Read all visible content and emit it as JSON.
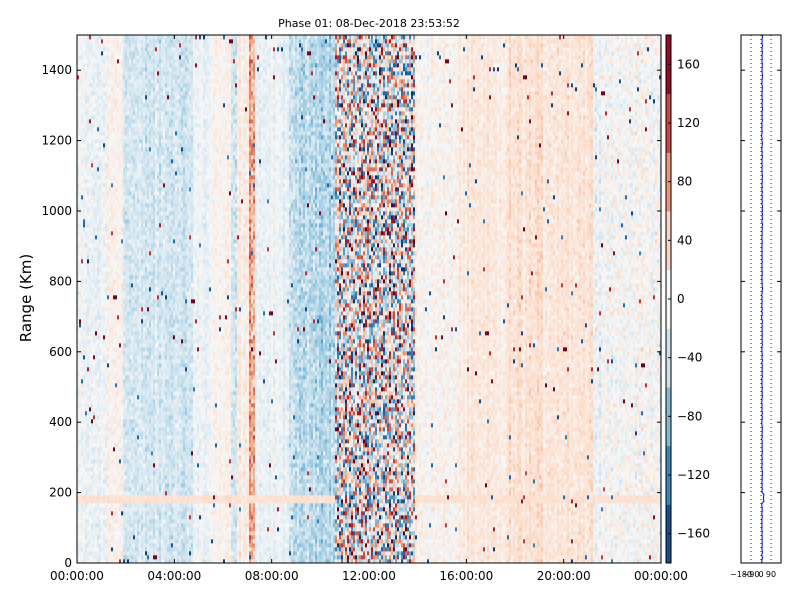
{
  "chart_data": {
    "type": "heatmap",
    "title": "Phase 01: 08-Dec-2018 23:53:52",
    "ylabel": "Range (Km)",
    "xlabel": "",
    "x_ticks": [
      "00:00:00",
      "04:00:00",
      "08:00:00",
      "12:00:00",
      "16:00:00",
      "20:00:00",
      "00:00:00"
    ],
    "y_ticks": [
      "0",
      "200",
      "400",
      "600",
      "800",
      "1000",
      "1200",
      "1400"
    ],
    "ylim": [
      0,
      1500
    ],
    "xlim_hours": [
      0,
      24
    ],
    "colorbar": {
      "range": [
        -180,
        180
      ],
      "ticks": [
        "−160",
        "−120",
        "−80",
        "−40",
        "0",
        "40",
        "80",
        "120",
        "160"
      ],
      "colormap": "RdBu_r",
      "colors": [
        "#053061",
        "#2166ac",
        "#4393c3",
        "#92c5de",
        "#d1e5f0",
        "#f7f7f7",
        "#fddbc7",
        "#f4a582",
        "#d6604d",
        "#b2182b",
        "#67001f"
      ]
    },
    "heatmap_bands": [
      {
        "start_h": 0.0,
        "end_h": 1.2,
        "mean": -12,
        "noise": 18
      },
      {
        "start_h": 1.2,
        "end_h": 1.9,
        "mean": 12,
        "noise": 16
      },
      {
        "start_h": 1.9,
        "end_h": 4.8,
        "mean": -32,
        "noise": 20
      },
      {
        "start_h": 4.8,
        "end_h": 5.5,
        "mean": -10,
        "noise": 16
      },
      {
        "start_h": 5.5,
        "end_h": 6.3,
        "mean": 5,
        "noise": 14
      },
      {
        "start_h": 6.3,
        "end_h": 6.6,
        "mean": -35,
        "noise": 22
      },
      {
        "start_h": 6.6,
        "end_h": 7.1,
        "mean": 12,
        "noise": 18
      },
      {
        "start_h": 7.1,
        "end_h": 7.35,
        "mean": 75,
        "noise": 40
      },
      {
        "start_h": 7.35,
        "end_h": 8.7,
        "mean": -12,
        "noise": 16
      },
      {
        "start_h": 8.7,
        "end_h": 10.6,
        "mean": -48,
        "noise": 26
      },
      {
        "start_h": 10.6,
        "end_h": 13.9,
        "mean": 0,
        "noise": 150
      },
      {
        "start_h": 13.9,
        "end_h": 15.6,
        "mean": 4,
        "noise": 18
      },
      {
        "start_h": 15.6,
        "end_h": 17.7,
        "mean": 16,
        "noise": 14
      },
      {
        "start_h": 17.7,
        "end_h": 21.2,
        "mean": 25,
        "noise": 16
      },
      {
        "start_h": 21.2,
        "end_h": 24.0,
        "mean": 0,
        "noise": 24
      }
    ],
    "horizontal_band": {
      "range_km": [
        175,
        195
      ],
      "mean": 28
    },
    "side_profile": {
      "x_ticks": [
        "−180",
        "−90",
        "0",
        "90"
      ],
      "xlim": [
        -180,
        180
      ],
      "ylim": [
        0,
        1500
      ],
      "typical_value": 10,
      "line_color": "#0000cc"
    }
  }
}
